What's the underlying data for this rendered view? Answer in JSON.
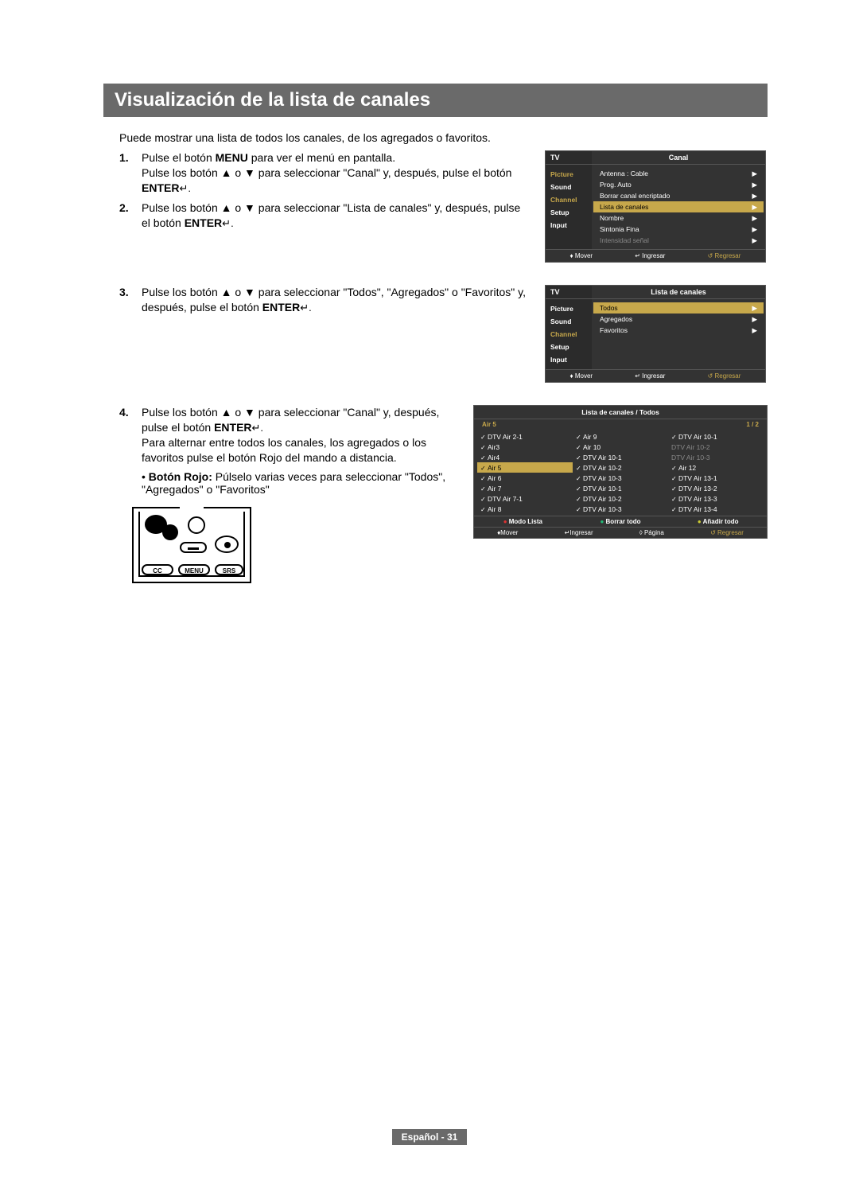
{
  "title": "Visualización de la lista de canales",
  "intro": "Puede mostrar una lista de todos los canales, de los agregados o favoritos.",
  "steps": {
    "s1": {
      "num": "1.",
      "t1": "Pulse el botón ",
      "t1b": "MENU",
      "t1c": " para ver el menú en pantalla.",
      "t2a": "Pulse los botón ▲ o ▼ para seleccionar \"Canal\" y, después, pulse el botón ",
      "t2b": "ENTER",
      "t2c": " ↵."
    },
    "s2": {
      "num": "2.",
      "t1": "Pulse los botón ▲ o ▼ para seleccionar \"Lista de canales\" y, después, pulse el botón ",
      "t1b": "ENTER",
      "t1c": " ↵."
    },
    "s3": {
      "num": "3.",
      "t1": "Pulse los botón ▲ o ▼ para seleccionar \"Todos\", \"Agregados\" o \"Favoritos\" y, después, pulse el botón ",
      "t1b": "ENTER",
      "t1c": " ↵."
    },
    "s4": {
      "num": "4.",
      "t1": "Pulse los botón ▲ o ▼ para seleccionar \"Canal\" y, después, pulse el botón ",
      "t1b": "ENTER",
      "t1c": " ↵.",
      "t2": "Para alternar entre todos los canales, los agregados o los favoritos pulse el botón Rojo del mando a distancia."
    }
  },
  "bullet": {
    "b": "Botón Rojo:",
    "t": " Púlselo varias veces para seleccionar \"Todos\", \"Agregados\" o \"Favoritos\""
  },
  "osd1": {
    "tv": "TV",
    "title": "Canal",
    "side": [
      "Picture",
      "Sound",
      "Channel",
      "Setup",
      "Input"
    ],
    "rows": [
      {
        "l": "Antenna",
        "r": ": Cable",
        "a": "▶"
      },
      {
        "l": "Prog. Auto",
        "r": "",
        "a": "▶"
      },
      {
        "l": "Borrar canal encriptado",
        "r": "",
        "a": "▶"
      },
      {
        "l": "Lista de canales",
        "r": "",
        "a": "▶",
        "hl": true
      },
      {
        "l": "Nombre",
        "r": "",
        "a": "▶"
      },
      {
        "l": "Sintonia Fina",
        "r": "",
        "a": "▶"
      },
      {
        "l": "Intensidad señal",
        "r": "",
        "a": "▶",
        "dim": true
      }
    ],
    "foot": {
      "mv": "♦ Mover",
      "in": "↵ Ingresar",
      "re": "↺ Regresar"
    }
  },
  "osd2": {
    "tv": "TV",
    "title": "Lista de canales",
    "side": [
      "Picture",
      "Sound",
      "Channel",
      "Setup",
      "Input"
    ],
    "rows": [
      {
        "l": "Todos",
        "a": "▶",
        "hl": true
      },
      {
        "l": "Agregados",
        "a": "▶"
      },
      {
        "l": "Favoritos",
        "a": "▶"
      }
    ],
    "foot": {
      "mv": "♦ Mover",
      "in": "↵ Ingresar",
      "re": "↺ Regresar"
    }
  },
  "chlist": {
    "title": "Lista de canales / Todos",
    "sub_l": "Air 5",
    "sub_r": "1 / 2",
    "col1": [
      {
        "t": "DTV Air 2-1",
        "c": true
      },
      {
        "t": "Air3",
        "c": true
      },
      {
        "t": "Air4",
        "c": true
      },
      {
        "t": "Air 5",
        "c": true,
        "hl": true
      },
      {
        "t": "Air 6",
        "c": true
      },
      {
        "t": "Air 7",
        "c": true
      },
      {
        "t": "DTV Air 7-1",
        "c": true
      },
      {
        "t": "Air 8",
        "c": true
      }
    ],
    "col2": [
      {
        "t": "Air 9",
        "c": true
      },
      {
        "t": "Air 10",
        "c": true
      },
      {
        "t": "DTV Air 10-1",
        "c": true
      },
      {
        "t": "DTV Air 10-2",
        "c": true
      },
      {
        "t": "DTV Air 10-3",
        "c": true
      },
      {
        "t": "DTV Air 10-1",
        "c": true
      },
      {
        "t": "DTV Air 10-2",
        "c": true
      },
      {
        "t": "DTV Air 10-3",
        "c": true
      }
    ],
    "col3": [
      {
        "t": "DTV Air 10-1",
        "c": true
      },
      {
        "t": "DTV Air 10-2",
        "dim": true
      },
      {
        "t": "DTV Air 10-3",
        "dim": true
      },
      {
        "t": "Air 12",
        "c": true
      },
      {
        "t": "DTV Air 13-1",
        "c": true
      },
      {
        "t": "DTV Air 13-2",
        "c": true
      },
      {
        "t": "DTV Air 13-3",
        "c": true
      },
      {
        "t": "DTV Air 13-4",
        "c": true
      }
    ],
    "btns": {
      "a": "Modo Lista",
      "b": "Borrar todo",
      "c": "Añadir todo"
    },
    "foot": {
      "mv": "♦Mover",
      "in": "↵Ingresar",
      "pg": "◊ Página",
      "re": "↺ Regresar"
    }
  },
  "remote": {
    "cc": "CC",
    "menu": "MENU",
    "srs": "SRS"
  },
  "footer": "Español - 31"
}
